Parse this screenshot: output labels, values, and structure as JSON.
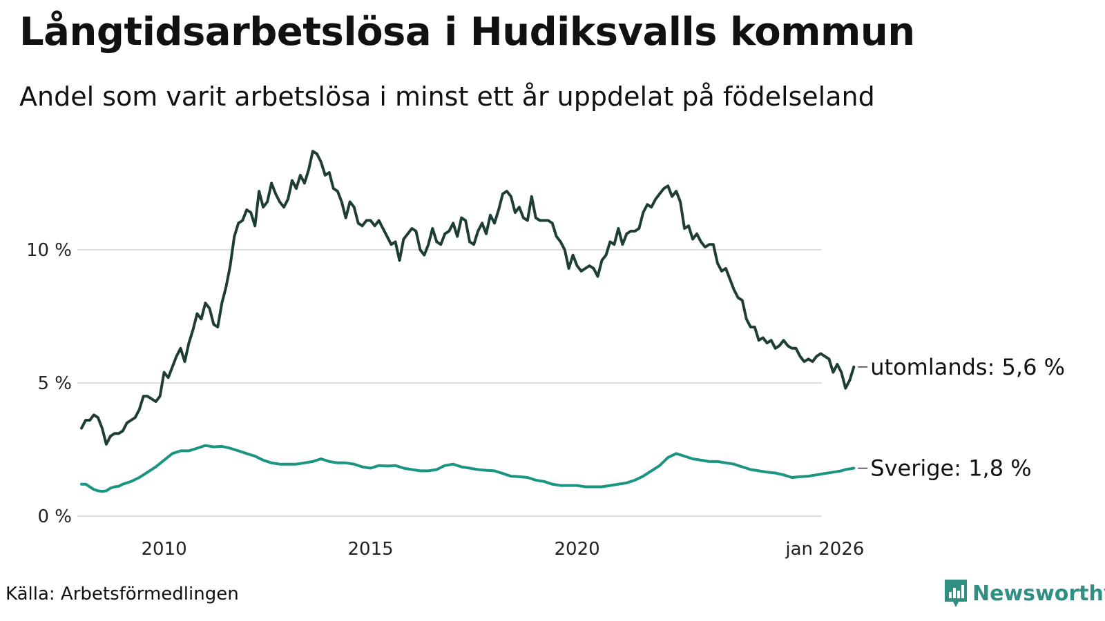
{
  "title": "Långtidsarbetslösa i Hudiksvalls kommun",
  "subtitle": "Andel som varit arbetslösa i minst ett år uppdelat på födelseland",
  "source": "Källa: Arbetsförmedlingen",
  "brand": {
    "name": "Newsworthy",
    "color": "#2f8f82"
  },
  "chart_data": {
    "type": "line",
    "x_range": [
      2008.0,
      2026.0
    ],
    "ylim": [
      0,
      14
    ],
    "y_ticks": [
      {
        "value": 0,
        "label": "0 %"
      },
      {
        "value": 5,
        "label": "5 %"
      },
      {
        "value": 10,
        "label": "10 %"
      }
    ],
    "x_ticks": [
      {
        "value": 2010,
        "label": "2010"
      },
      {
        "value": 2015,
        "label": "2015"
      },
      {
        "value": 2020,
        "label": "2020"
      },
      {
        "value": 2026,
        "label": "jan 2026"
      }
    ],
    "grid": true,
    "series": [
      {
        "name": "utomlands",
        "end_label": "utomlands: 5,6 %",
        "color": "#1e3d36",
        "points": [
          [
            2008.0,
            3.3
          ],
          [
            2008.1,
            3.6
          ],
          [
            2008.2,
            3.6
          ],
          [
            2008.3,
            3.8
          ],
          [
            2008.4,
            3.7
          ],
          [
            2008.5,
            3.3
          ],
          [
            2008.6,
            2.7
          ],
          [
            2008.7,
            3.0
          ],
          [
            2008.8,
            3.1
          ],
          [
            2008.9,
            3.1
          ],
          [
            2009.0,
            3.2
          ],
          [
            2009.1,
            3.5
          ],
          [
            2009.2,
            3.6
          ],
          [
            2009.3,
            3.7
          ],
          [
            2009.4,
            4.0
          ],
          [
            2009.5,
            4.5
          ],
          [
            2009.6,
            4.5
          ],
          [
            2009.7,
            4.4
          ],
          [
            2009.8,
            4.3
          ],
          [
            2009.9,
            4.5
          ],
          [
            2010.0,
            5.4
          ],
          [
            2010.1,
            5.2
          ],
          [
            2010.2,
            5.6
          ],
          [
            2010.3,
            6.0
          ],
          [
            2010.4,
            6.3
          ],
          [
            2010.5,
            5.8
          ],
          [
            2010.6,
            6.5
          ],
          [
            2010.7,
            7.0
          ],
          [
            2010.8,
            7.6
          ],
          [
            2010.9,
            7.4
          ],
          [
            2011.0,
            8.0
          ],
          [
            2011.1,
            7.8
          ],
          [
            2011.2,
            7.2
          ],
          [
            2011.3,
            7.1
          ],
          [
            2011.4,
            8.0
          ],
          [
            2011.5,
            8.6
          ],
          [
            2011.6,
            9.4
          ],
          [
            2011.7,
            10.5
          ],
          [
            2011.8,
            11.0
          ],
          [
            2011.9,
            11.1
          ],
          [
            2012.0,
            11.5
          ],
          [
            2012.1,
            11.4
          ],
          [
            2012.2,
            10.9
          ],
          [
            2012.3,
            12.2
          ],
          [
            2012.4,
            11.6
          ],
          [
            2012.5,
            11.8
          ],
          [
            2012.6,
            12.5
          ],
          [
            2012.7,
            12.1
          ],
          [
            2012.8,
            11.8
          ],
          [
            2012.9,
            11.6
          ],
          [
            2013.0,
            11.9
          ],
          [
            2013.1,
            12.6
          ],
          [
            2013.2,
            12.3
          ],
          [
            2013.3,
            12.8
          ],
          [
            2013.4,
            12.5
          ],
          [
            2013.5,
            13.0
          ],
          [
            2013.6,
            13.7
          ],
          [
            2013.7,
            13.6
          ],
          [
            2013.8,
            13.3
          ],
          [
            2013.9,
            12.8
          ],
          [
            2014.0,
            12.9
          ],
          [
            2014.1,
            12.3
          ],
          [
            2014.2,
            12.2
          ],
          [
            2014.3,
            11.8
          ],
          [
            2014.4,
            11.2
          ],
          [
            2014.5,
            11.8
          ],
          [
            2014.6,
            11.6
          ],
          [
            2014.7,
            11.0
          ],
          [
            2014.8,
            10.9
          ],
          [
            2014.9,
            11.1
          ],
          [
            2015.0,
            11.1
          ],
          [
            2015.1,
            10.9
          ],
          [
            2015.2,
            11.1
          ],
          [
            2015.3,
            10.8
          ],
          [
            2015.4,
            10.5
          ],
          [
            2015.5,
            10.2
          ],
          [
            2015.6,
            10.3
          ],
          [
            2015.7,
            9.6
          ],
          [
            2015.8,
            10.4
          ],
          [
            2015.9,
            10.6
          ],
          [
            2016.0,
            10.8
          ],
          [
            2016.1,
            10.7
          ],
          [
            2016.2,
            10.0
          ],
          [
            2016.3,
            9.8
          ],
          [
            2016.4,
            10.2
          ],
          [
            2016.5,
            10.8
          ],
          [
            2016.6,
            10.3
          ],
          [
            2016.7,
            10.2
          ],
          [
            2016.8,
            10.6
          ],
          [
            2016.9,
            10.7
          ],
          [
            2017.0,
            11.0
          ],
          [
            2017.1,
            10.5
          ],
          [
            2017.2,
            11.2
          ],
          [
            2017.3,
            11.1
          ],
          [
            2017.4,
            10.3
          ],
          [
            2017.5,
            10.2
          ],
          [
            2017.6,
            10.7
          ],
          [
            2017.7,
            11.0
          ],
          [
            2017.8,
            10.6
          ],
          [
            2017.9,
            11.3
          ],
          [
            2018.0,
            11.0
          ],
          [
            2018.1,
            11.5
          ],
          [
            2018.2,
            12.1
          ],
          [
            2018.3,
            12.2
          ],
          [
            2018.4,
            12.0
          ],
          [
            2018.5,
            11.4
          ],
          [
            2018.6,
            11.6
          ],
          [
            2018.7,
            11.2
          ],
          [
            2018.8,
            11.1
          ],
          [
            2018.9,
            12.0
          ],
          [
            2019.0,
            11.2
          ],
          [
            2019.1,
            11.1
          ],
          [
            2019.2,
            11.1
          ],
          [
            2019.3,
            11.1
          ],
          [
            2019.4,
            11.0
          ],
          [
            2019.5,
            10.5
          ],
          [
            2019.6,
            10.3
          ],
          [
            2019.7,
            10.0
          ],
          [
            2019.8,
            9.3
          ],
          [
            2019.9,
            9.8
          ],
          [
            2020.0,
            9.4
          ],
          [
            2020.1,
            9.2
          ],
          [
            2020.2,
            9.3
          ],
          [
            2020.3,
            9.4
          ],
          [
            2020.4,
            9.3
          ],
          [
            2020.5,
            9.0
          ],
          [
            2020.6,
            9.6
          ],
          [
            2020.7,
            9.8
          ],
          [
            2020.8,
            10.3
          ],
          [
            2020.9,
            10.2
          ],
          [
            2021.0,
            10.8
          ],
          [
            2021.1,
            10.2
          ],
          [
            2021.2,
            10.6
          ],
          [
            2021.3,
            10.7
          ],
          [
            2021.4,
            10.7
          ],
          [
            2021.5,
            10.8
          ],
          [
            2021.6,
            11.4
          ],
          [
            2021.7,
            11.7
          ],
          [
            2021.8,
            11.6
          ],
          [
            2021.9,
            11.9
          ],
          [
            2022.0,
            12.1
          ],
          [
            2022.1,
            12.3
          ],
          [
            2022.2,
            12.4
          ],
          [
            2022.3,
            12.0
          ],
          [
            2022.4,
            12.2
          ],
          [
            2022.5,
            11.8
          ],
          [
            2022.6,
            10.8
          ],
          [
            2022.7,
            10.9
          ],
          [
            2022.8,
            10.4
          ],
          [
            2022.9,
            10.6
          ],
          [
            2023.0,
            10.3
          ],
          [
            2023.1,
            10.1
          ],
          [
            2023.2,
            10.2
          ],
          [
            2023.3,
            10.2
          ],
          [
            2023.4,
            9.5
          ],
          [
            2023.5,
            9.2
          ],
          [
            2023.6,
            9.3
          ],
          [
            2023.7,
            8.9
          ],
          [
            2023.8,
            8.5
          ],
          [
            2023.9,
            8.2
          ],
          [
            2024.0,
            8.1
          ],
          [
            2024.1,
            7.4
          ],
          [
            2024.2,
            7.1
          ],
          [
            2024.3,
            7.1
          ],
          [
            2024.4,
            6.6
          ],
          [
            2024.5,
            6.7
          ],
          [
            2024.6,
            6.5
          ],
          [
            2024.7,
            6.6
          ],
          [
            2024.8,
            6.3
          ],
          [
            2024.9,
            6.4
          ],
          [
            2025.0,
            6.6
          ],
          [
            2025.1,
            6.4
          ],
          [
            2025.2,
            6.3
          ],
          [
            2025.3,
            6.3
          ],
          [
            2025.4,
            6.0
          ],
          [
            2025.5,
            5.8
          ],
          [
            2025.6,
            5.9
          ],
          [
            2025.7,
            5.8
          ],
          [
            2025.8,
            6.0
          ],
          [
            2025.9,
            6.1
          ],
          [
            2026.0,
            6.0
          ],
          [
            2026.1,
            5.9
          ],
          [
            2026.2,
            5.4
          ],
          [
            2026.3,
            5.7
          ],
          [
            2026.4,
            5.4
          ],
          [
            2026.5,
            4.8
          ],
          [
            2026.6,
            5.1
          ],
          [
            2026.7,
            5.6
          ]
        ]
      },
      {
        "name": "Sverige",
        "end_label": "Sverige: 1,8 %",
        "color": "#1a9582",
        "points": [
          [
            2008.0,
            1.2
          ],
          [
            2008.1,
            1.2
          ],
          [
            2008.2,
            1.1
          ],
          [
            2008.3,
            1.0
          ],
          [
            2008.4,
            0.95
          ],
          [
            2008.5,
            0.93
          ],
          [
            2008.6,
            0.95
          ],
          [
            2008.7,
            1.05
          ],
          [
            2008.8,
            1.1
          ],
          [
            2008.9,
            1.12
          ],
          [
            2009.0,
            1.2
          ],
          [
            2009.2,
            1.3
          ],
          [
            2009.4,
            1.45
          ],
          [
            2009.6,
            1.65
          ],
          [
            2009.8,
            1.85
          ],
          [
            2010.0,
            2.1
          ],
          [
            2010.2,
            2.35
          ],
          [
            2010.4,
            2.45
          ],
          [
            2010.6,
            2.45
          ],
          [
            2010.8,
            2.55
          ],
          [
            2011.0,
            2.65
          ],
          [
            2011.2,
            2.6
          ],
          [
            2011.4,
            2.62
          ],
          [
            2011.6,
            2.55
          ],
          [
            2011.8,
            2.45
          ],
          [
            2012.0,
            2.35
          ],
          [
            2012.2,
            2.25
          ],
          [
            2012.4,
            2.1
          ],
          [
            2012.6,
            2.0
          ],
          [
            2012.8,
            1.95
          ],
          [
            2013.0,
            1.95
          ],
          [
            2013.2,
            1.95
          ],
          [
            2013.4,
            2.0
          ],
          [
            2013.6,
            2.05
          ],
          [
            2013.8,
            2.15
          ],
          [
            2014.0,
            2.05
          ],
          [
            2014.2,
            2.0
          ],
          [
            2014.4,
            2.0
          ],
          [
            2014.6,
            1.95
          ],
          [
            2014.8,
            1.85
          ],
          [
            2015.0,
            1.8
          ],
          [
            2015.2,
            1.9
          ],
          [
            2015.4,
            1.88
          ],
          [
            2015.6,
            1.9
          ],
          [
            2015.8,
            1.8
          ],
          [
            2016.0,
            1.75
          ],
          [
            2016.2,
            1.7
          ],
          [
            2016.4,
            1.7
          ],
          [
            2016.6,
            1.75
          ],
          [
            2016.8,
            1.9
          ],
          [
            2017.0,
            1.95
          ],
          [
            2017.2,
            1.85
          ],
          [
            2017.4,
            1.8
          ],
          [
            2017.6,
            1.75
          ],
          [
            2017.8,
            1.72
          ],
          [
            2018.0,
            1.7
          ],
          [
            2018.2,
            1.6
          ],
          [
            2018.4,
            1.5
          ],
          [
            2018.6,
            1.48
          ],
          [
            2018.8,
            1.45
          ],
          [
            2019.0,
            1.35
          ],
          [
            2019.2,
            1.3
          ],
          [
            2019.4,
            1.2
          ],
          [
            2019.6,
            1.15
          ],
          [
            2019.8,
            1.15
          ],
          [
            2020.0,
            1.15
          ],
          [
            2020.2,
            1.1
          ],
          [
            2020.4,
            1.1
          ],
          [
            2020.6,
            1.1
          ],
          [
            2020.8,
            1.15
          ],
          [
            2021.0,
            1.2
          ],
          [
            2021.2,
            1.25
          ],
          [
            2021.4,
            1.35
          ],
          [
            2021.6,
            1.5
          ],
          [
            2021.8,
            1.7
          ],
          [
            2022.0,
            1.9
          ],
          [
            2022.2,
            2.2
          ],
          [
            2022.4,
            2.35
          ],
          [
            2022.6,
            2.25
          ],
          [
            2022.8,
            2.15
          ],
          [
            2023.0,
            2.1
          ],
          [
            2023.2,
            2.05
          ],
          [
            2023.4,
            2.05
          ],
          [
            2023.6,
            2.0
          ],
          [
            2023.8,
            1.95
          ],
          [
            2024.0,
            1.85
          ],
          [
            2024.2,
            1.75
          ],
          [
            2024.4,
            1.7
          ],
          [
            2024.6,
            1.65
          ],
          [
            2024.8,
            1.62
          ],
          [
            2025.0,
            1.55
          ],
          [
            2025.2,
            1.45
          ],
          [
            2025.4,
            1.48
          ],
          [
            2025.6,
            1.5
          ],
          [
            2025.8,
            1.55
          ],
          [
            2026.0,
            1.6
          ],
          [
            2026.2,
            1.65
          ],
          [
            2026.4,
            1.7
          ],
          [
            2026.5,
            1.75
          ],
          [
            2026.7,
            1.8
          ]
        ]
      }
    ]
  }
}
